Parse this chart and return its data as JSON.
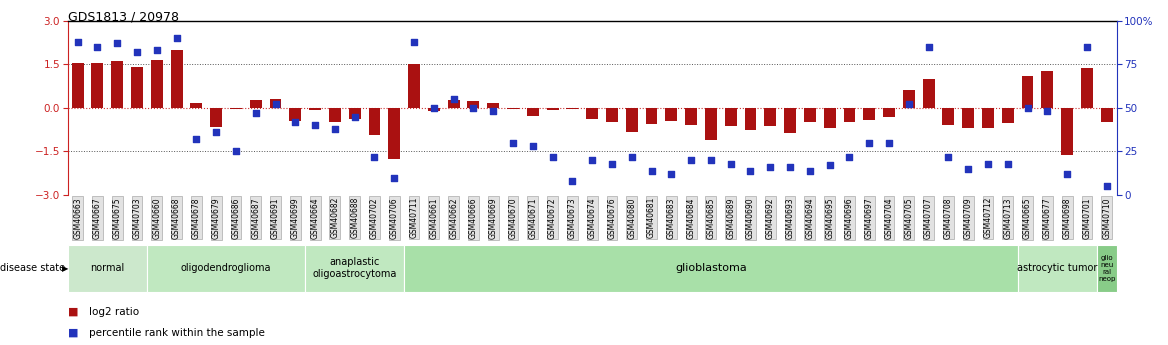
{
  "title": "GDS1813 / 20978",
  "samples": [
    "GSM40663",
    "GSM40667",
    "GSM40675",
    "GSM40703",
    "GSM40660",
    "GSM40668",
    "GSM40678",
    "GSM40679",
    "GSM40686",
    "GSM40687",
    "GSM40691",
    "GSM40699",
    "GSM40664",
    "GSM40682",
    "GSM40688",
    "GSM40702",
    "GSM40706",
    "GSM40711",
    "GSM40661",
    "GSM40662",
    "GSM40666",
    "GSM40669",
    "GSM40670",
    "GSM40671",
    "GSM40672",
    "GSM40673",
    "GSM40674",
    "GSM40676",
    "GSM40680",
    "GSM40681",
    "GSM40683",
    "GSM40684",
    "GSM40685",
    "GSM40689",
    "GSM40690",
    "GSM40692",
    "GSM40693",
    "GSM40694",
    "GSM40695",
    "GSM40696",
    "GSM40697",
    "GSM40704",
    "GSM40705",
    "GSM40707",
    "GSM40708",
    "GSM40709",
    "GSM40712",
    "GSM40713",
    "GSM40665",
    "GSM40677",
    "GSM40698",
    "GSM40701",
    "GSM40710"
  ],
  "log2_ratio": [
    1.55,
    1.55,
    1.6,
    1.4,
    1.65,
    2.0,
    0.18,
    -0.65,
    -0.05,
    0.28,
    0.32,
    -0.45,
    -0.08,
    -0.5,
    -0.38,
    -0.95,
    -1.75,
    1.5,
    -0.12,
    0.28,
    0.22,
    0.18,
    -0.04,
    -0.28,
    -0.08,
    -0.04,
    -0.38,
    -0.5,
    -0.82,
    -0.55,
    -0.45,
    -0.58,
    -1.1,
    -0.62,
    -0.78,
    -0.62,
    -0.88,
    -0.48,
    -0.68,
    -0.48,
    -0.42,
    -0.32,
    0.62,
    1.0,
    -0.58,
    -0.68,
    -0.68,
    -0.52,
    1.1,
    1.28,
    -1.62,
    1.38,
    -0.48
  ],
  "percentile": [
    88,
    85,
    87,
    82,
    83,
    90,
    32,
    36,
    25,
    47,
    52,
    42,
    40,
    38,
    45,
    22,
    10,
    88,
    50,
    55,
    50,
    48,
    30,
    28,
    22,
    8,
    20,
    18,
    22,
    14,
    12,
    20,
    20,
    18,
    14,
    16,
    16,
    14,
    17,
    22,
    30,
    30,
    52,
    85,
    22,
    15,
    18,
    18,
    50,
    48,
    12,
    85,
    5
  ],
  "disease_groups": [
    {
      "label": "normal",
      "start": 0,
      "end": 4,
      "color": "#cce8cc",
      "fontsize": 7
    },
    {
      "label": "oligodendroglioma",
      "start": 4,
      "end": 12,
      "color": "#c0e8c0",
      "fontsize": 7
    },
    {
      "label": "anaplastic\noligoastrocytoma",
      "start": 12,
      "end": 17,
      "color": "#c0e8c0",
      "fontsize": 7
    },
    {
      "label": "glioblastoma",
      "start": 17,
      "end": 48,
      "color": "#a8e0a8",
      "fontsize": 8
    },
    {
      "label": "astrocytic tumor",
      "start": 48,
      "end": 52,
      "color": "#c0e8c0",
      "fontsize": 7
    },
    {
      "label": "glio\nneu\nral\nneop",
      "start": 52,
      "end": 53,
      "color": "#88cc88",
      "fontsize": 5
    }
  ],
  "bar_color": "#aa1111",
  "dot_color": "#2233bb",
  "yticks_left": [
    -3,
    -1.5,
    0,
    1.5,
    3
  ],
  "yticks_right": [
    0,
    25,
    50,
    75,
    100
  ]
}
